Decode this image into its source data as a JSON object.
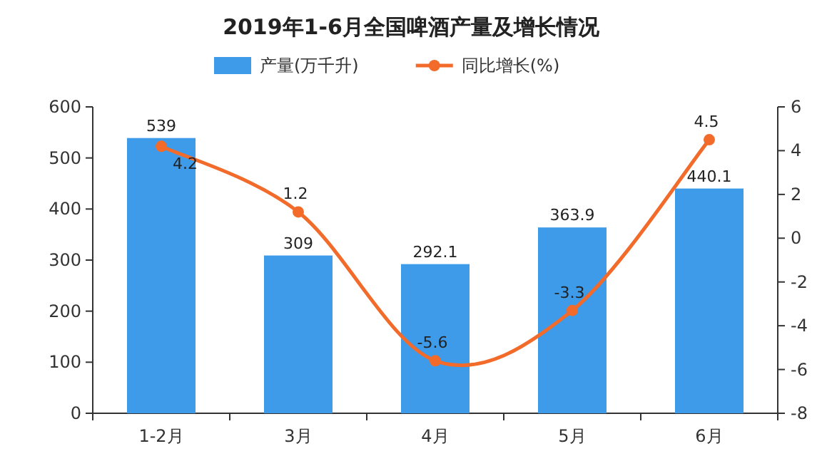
{
  "chart_data": {
    "type": "bar",
    "title": "2019年1-6月全国啤酒产量及增长情况",
    "categories": [
      "1-2月",
      "3月",
      "4月",
      "5月",
      "6月"
    ],
    "series": [
      {
        "name": "产量(万千升)",
        "color": "#3d9be9",
        "values": [
          539,
          309,
          292.1,
          363.9,
          440.1
        ]
      },
      {
        "name": "同比增长(%)",
        "type": "line",
        "axis": "y2",
        "color": "#f26b2a",
        "values": [
          4.2,
          1.2,
          -5.6,
          -3.3,
          4.5
        ]
      }
    ],
    "ylim": [
      0,
      600
    ],
    "yticks": [
      0,
      100,
      200,
      300,
      400,
      500,
      600
    ],
    "y2lim": [
      -8,
      6
    ],
    "y2ticks": [
      -8,
      -6,
      -4,
      -2,
      0,
      2,
      4,
      6
    ],
    "data_labels": true,
    "legend": "top",
    "marker": "circle"
  }
}
